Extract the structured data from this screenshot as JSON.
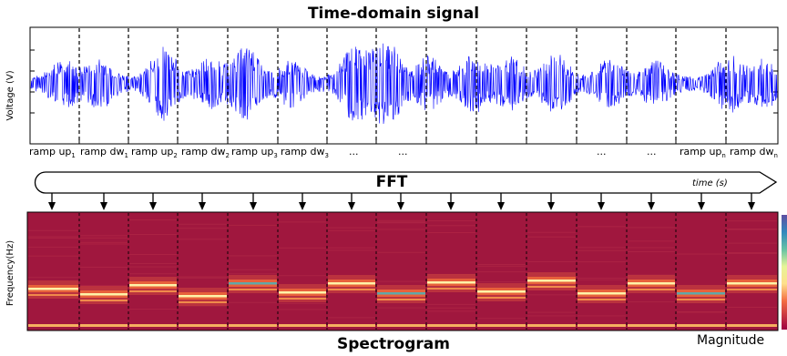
{
  "signal_panel": {
    "title": "Time-domain signal",
    "ylabel": "Voltage (V)"
  },
  "segment_labels": [
    {
      "base": "ramp up",
      "sub": "1"
    },
    {
      "base": "ramp dw",
      "sub": "1"
    },
    {
      "base": "ramp up",
      "sub": "2"
    },
    {
      "base": "ramp dw",
      "sub": "2"
    },
    {
      "base": "ramp up",
      "sub": "3"
    },
    {
      "base": "ramp dw",
      "sub": "3"
    },
    {
      "base": "...",
      "sub": ""
    },
    {
      "base": "...",
      "sub": ""
    },
    {
      "base": "",
      "sub": ""
    },
    {
      "base": "",
      "sub": ""
    },
    {
      "base": "",
      "sub": ""
    },
    {
      "base": "...",
      "sub": ""
    },
    {
      "base": "...",
      "sub": ""
    },
    {
      "base": "ramp up",
      "sub": "n"
    },
    {
      "base": "ramp dw",
      "sub": "n"
    }
  ],
  "fft": {
    "label": "FFT",
    "axis_label": "time (s)"
  },
  "spectrogram_panel": {
    "title": "Spectrogram",
    "ylabel": "Frequency(Hz)",
    "colorbar_label": "Magnitude",
    "background_color": "#a0173e",
    "segments": 15
  },
  "colors": {
    "signal": "#0000ff",
    "divider": "#000000"
  }
}
